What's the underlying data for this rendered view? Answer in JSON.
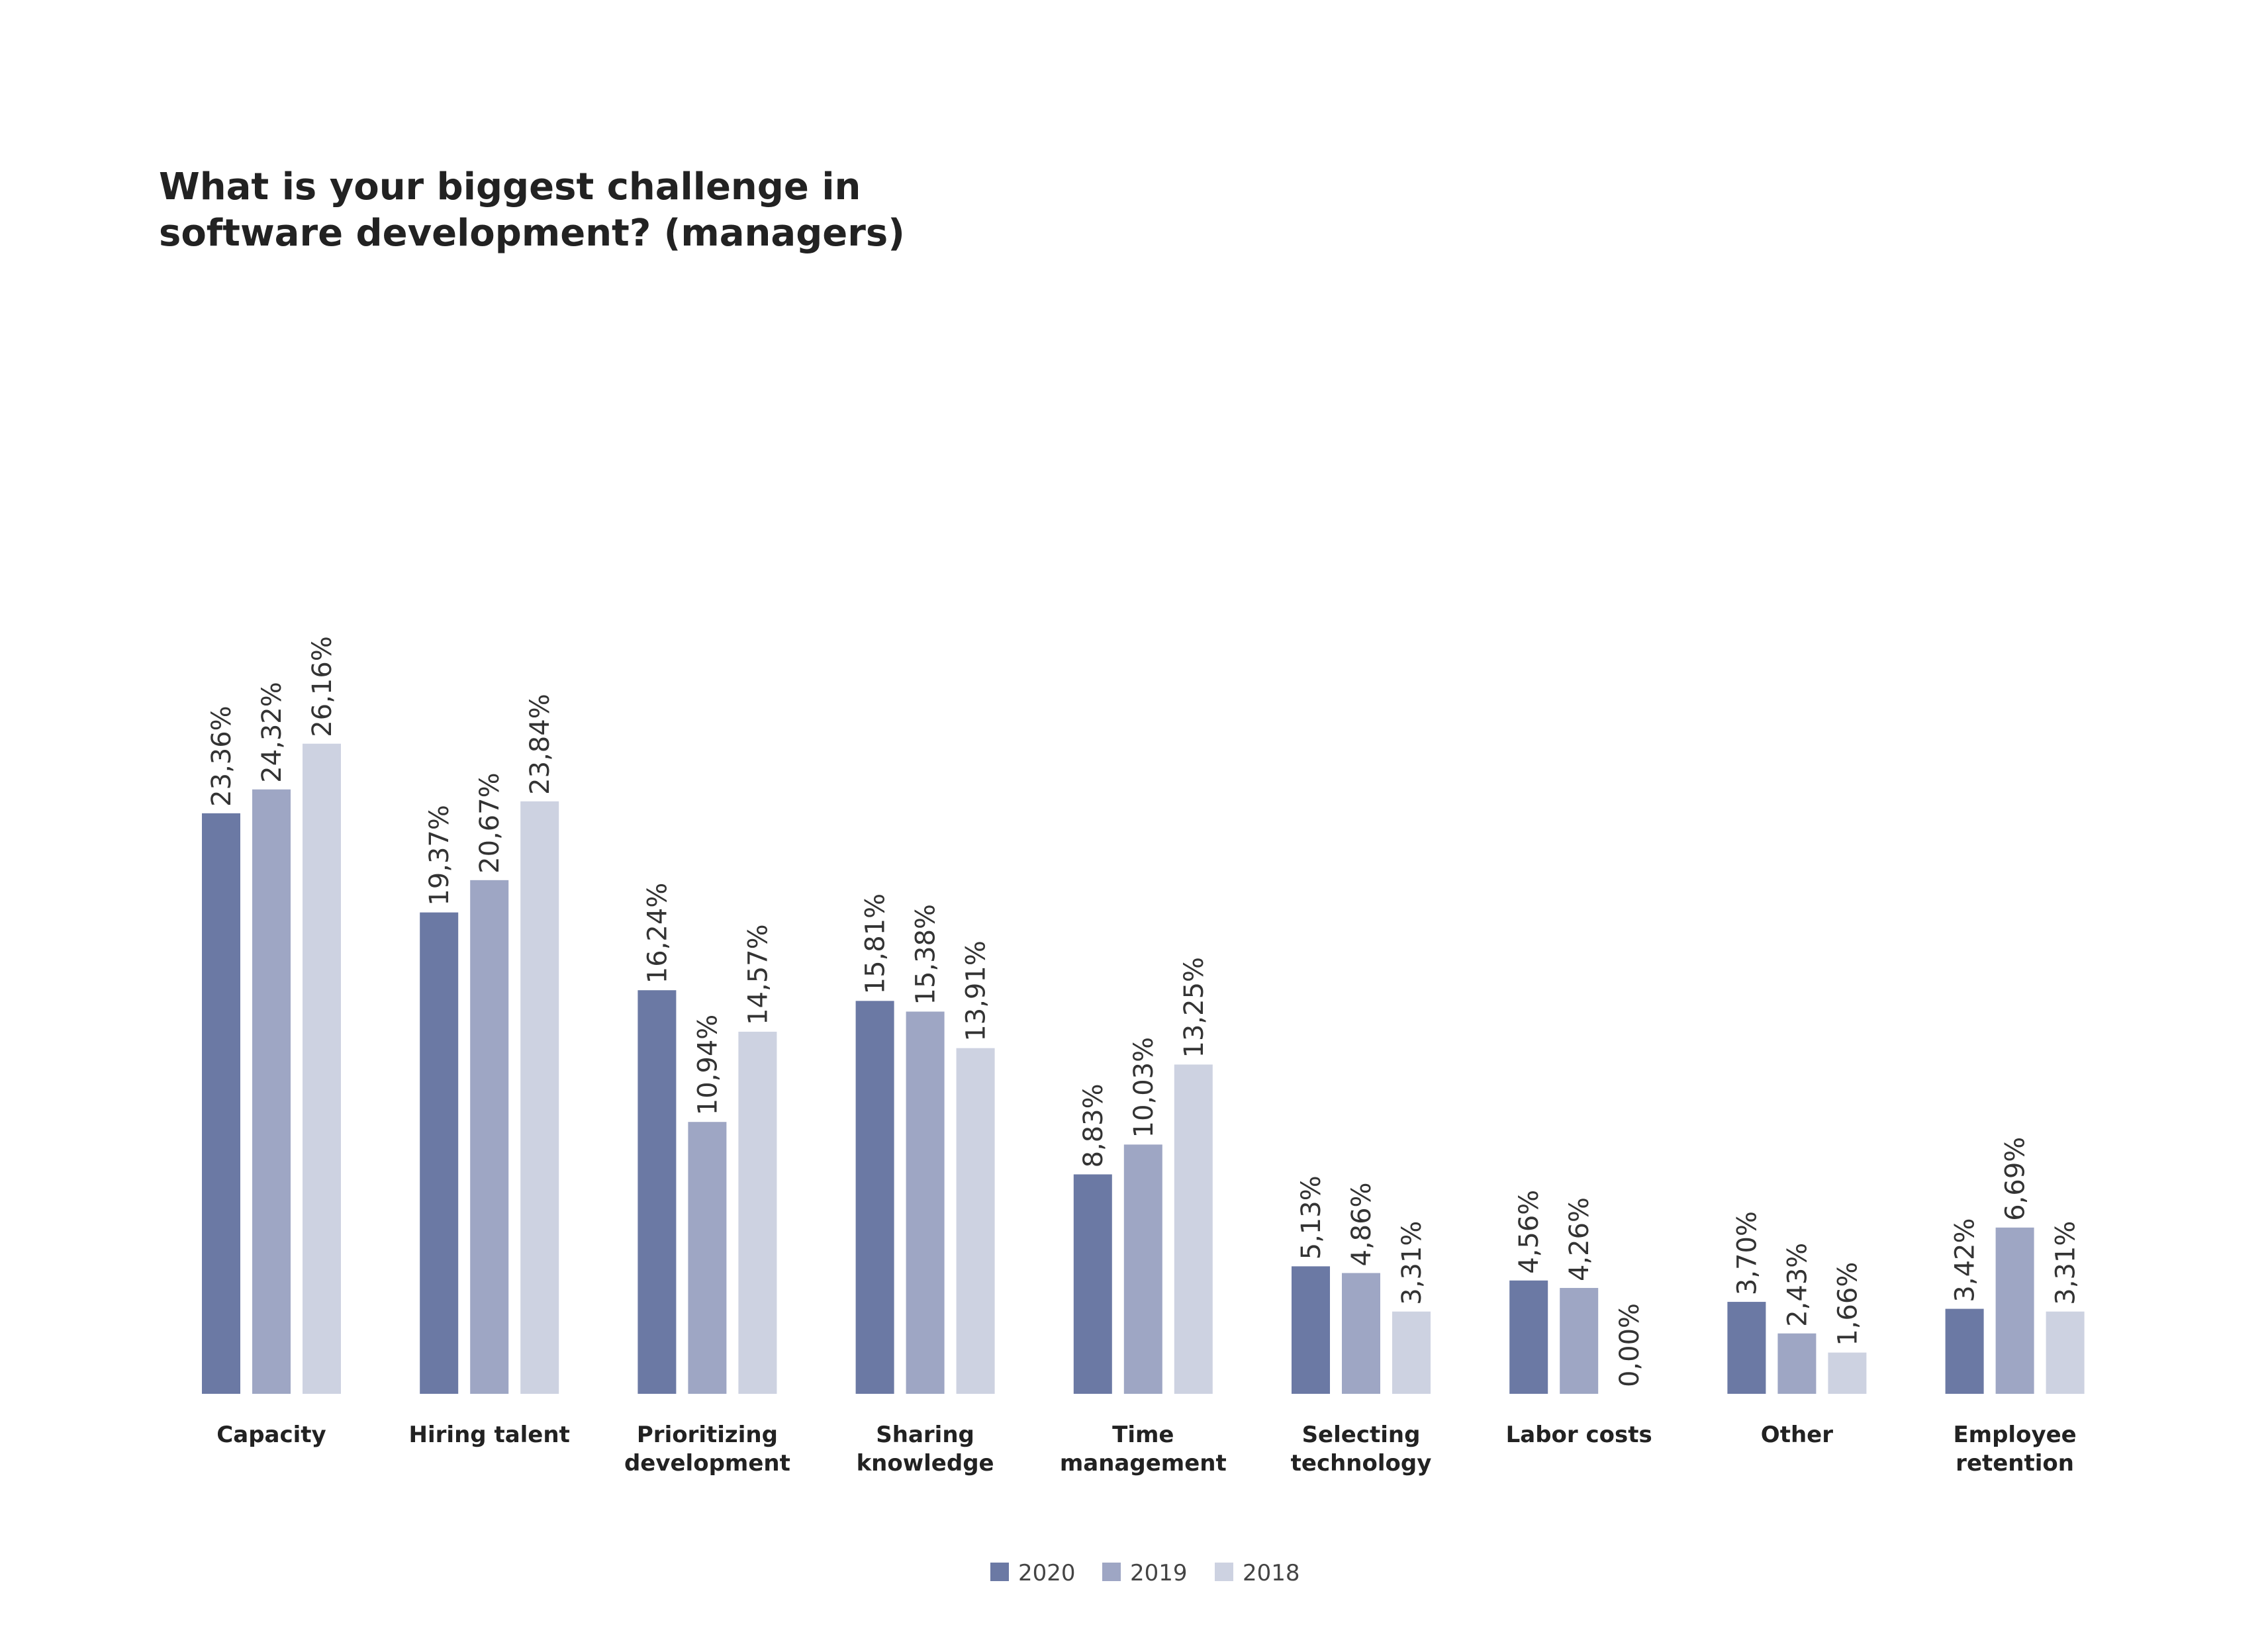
{
  "title": {
    "line1": "What is your biggest challenge in",
    "line2": "software development? (managers)"
  },
  "colors": {
    "2020": "#6b79a4",
    "2019": "#9ea6c4",
    "2018": "#cdd2e1"
  },
  "chart_data": {
    "type": "bar",
    "title": "What is your biggest challenge in software development? (managers)",
    "categories": [
      [
        "Capacity"
      ],
      [
        "Hiring talent"
      ],
      [
        "Prioritizing",
        "development"
      ],
      [
        "Sharing",
        "knowledge"
      ],
      [
        "Time",
        "management"
      ],
      [
        "Selecting",
        "technology"
      ],
      [
        "Labor costs"
      ],
      [
        "Other"
      ],
      [
        "Employee",
        "retention"
      ]
    ],
    "series": [
      {
        "name": "2020",
        "values": [
          23.36,
          19.37,
          16.24,
          15.81,
          8.83,
          5.13,
          4.56,
          3.7,
          3.42
        ],
        "labels": [
          "23,36%",
          "19,37%",
          "16,24%",
          "15,81%",
          "8,83%",
          "5,13%",
          "4,56%",
          "3,70%",
          "3,42%"
        ]
      },
      {
        "name": "2019",
        "values": [
          24.32,
          20.67,
          10.94,
          15.38,
          10.03,
          4.86,
          4.26,
          2.43,
          6.69
        ],
        "labels": [
          "24,32%",
          "20,67%",
          "10,94%",
          "15,38%",
          "10,03%",
          "4,86%",
          "4,26%",
          "2,43%",
          "6,69%"
        ]
      },
      {
        "name": "2018",
        "values": [
          26.16,
          23.84,
          14.57,
          13.91,
          13.25,
          3.31,
          0.0,
          1.66,
          3.31
        ],
        "labels": [
          "26,16%",
          "23,84%",
          "14,57%",
          "13,91%",
          "13,25%",
          "3,31%",
          "0,00%",
          "1,66%",
          "3,31%"
        ]
      }
    ],
    "xlabel": "",
    "ylabel": "",
    "ylim": [
      0,
      30
    ],
    "grid": false,
    "legend_position": "bottom-center"
  }
}
